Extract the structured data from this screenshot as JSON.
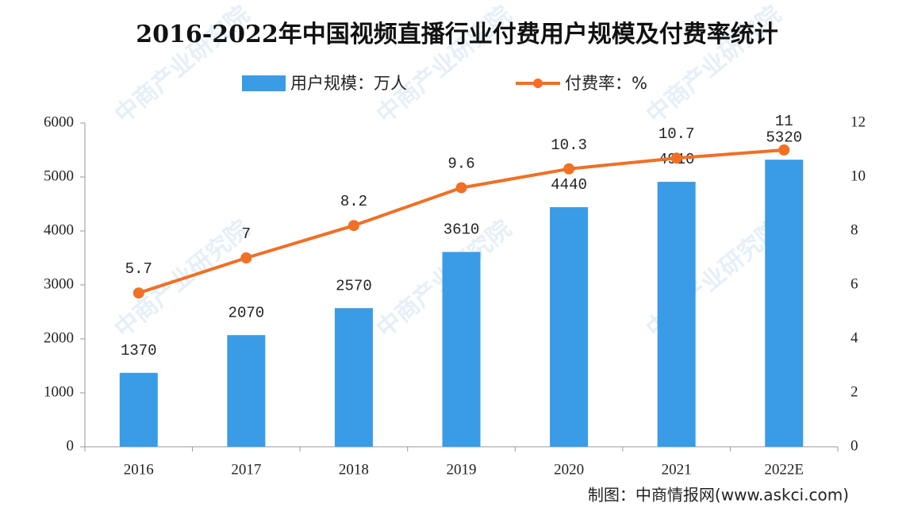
{
  "chart_data": {
    "type": "bar_line",
    "title": "2016-2022年中国视频直播行业付费用户规模及付费率统计",
    "categories": [
      "2016",
      "2017",
      "2018",
      "2019",
      "2020",
      "2021",
      "2022E"
    ],
    "series": [
      {
        "name": "用户规模：万人",
        "type": "bar",
        "color": "#3a9be6",
        "values": [
          1370,
          2070,
          2570,
          3610,
          4440,
          4910,
          5320
        ]
      },
      {
        "name": "付费率：%",
        "type": "line",
        "axis": "y2",
        "color": "#f07025",
        "values": [
          5.7,
          7,
          8.2,
          9.6,
          10.3,
          10.7,
          11
        ]
      }
    ],
    "ylim": [
      0,
      6000
    ],
    "yticks": [
      0,
      1000,
      2000,
      3000,
      4000,
      5000,
      6000
    ],
    "y2lim": [
      0,
      12
    ],
    "y2ticks": [
      0,
      2,
      4,
      6,
      8,
      10,
      12
    ],
    "source": "制图：中商情报网(www.askci.com)",
    "watermark": "中商产业研究院"
  }
}
